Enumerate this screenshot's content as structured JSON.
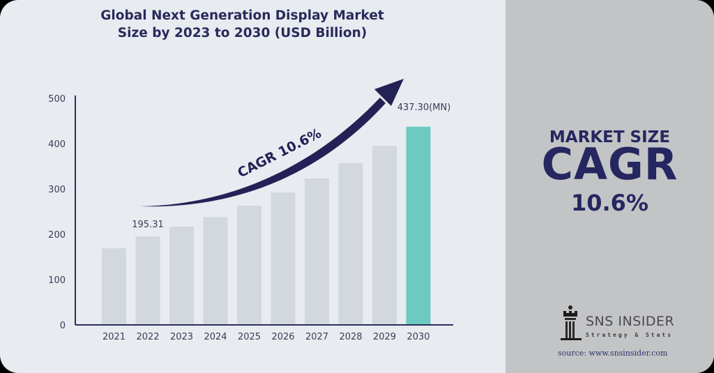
{
  "chart_data": {
    "type": "bar",
    "title": "Global Next Generation Display Market Size by 2023 to 2030 (USD Billion)",
    "title_lines": [
      "Global Next Generation Display Market",
      "Size by 2023 to 2030 (USD Billion)"
    ],
    "xlabel": "",
    "ylabel": "",
    "categories": [
      "2021",
      "2022",
      "2023",
      "2024",
      "2025",
      "2026",
      "2027",
      "2028",
      "2029",
      "2030"
    ],
    "values": [
      169,
      195.31,
      217,
      238,
      263,
      292,
      323,
      357,
      395,
      437.3
    ],
    "ylim": [
      0,
      500
    ],
    "yticks": [
      0,
      100,
      200,
      300,
      400,
      500
    ],
    "grid": false,
    "highlight_category": "2030",
    "data_labels": [
      {
        "category": "2022",
        "text": "195.31"
      },
      {
        "category": "2030",
        "text": "437.30(MN)"
      }
    ],
    "annotation": "CAGR 10.6%",
    "colors": {
      "bar": "#d2d8dd",
      "highlight": "#6ccac2",
      "axis": "#2c2e5c",
      "arrow": "#232156",
      "text": "#3a3c55"
    }
  },
  "side_panel": {
    "label": "MARKET SIZE",
    "metric": "CAGR",
    "value": "10.6%"
  },
  "branding": {
    "logo_name": "SNS INSIDER",
    "logo_tagline": "Strategy & Stats",
    "source": "source: www.snsinsider.com"
  }
}
